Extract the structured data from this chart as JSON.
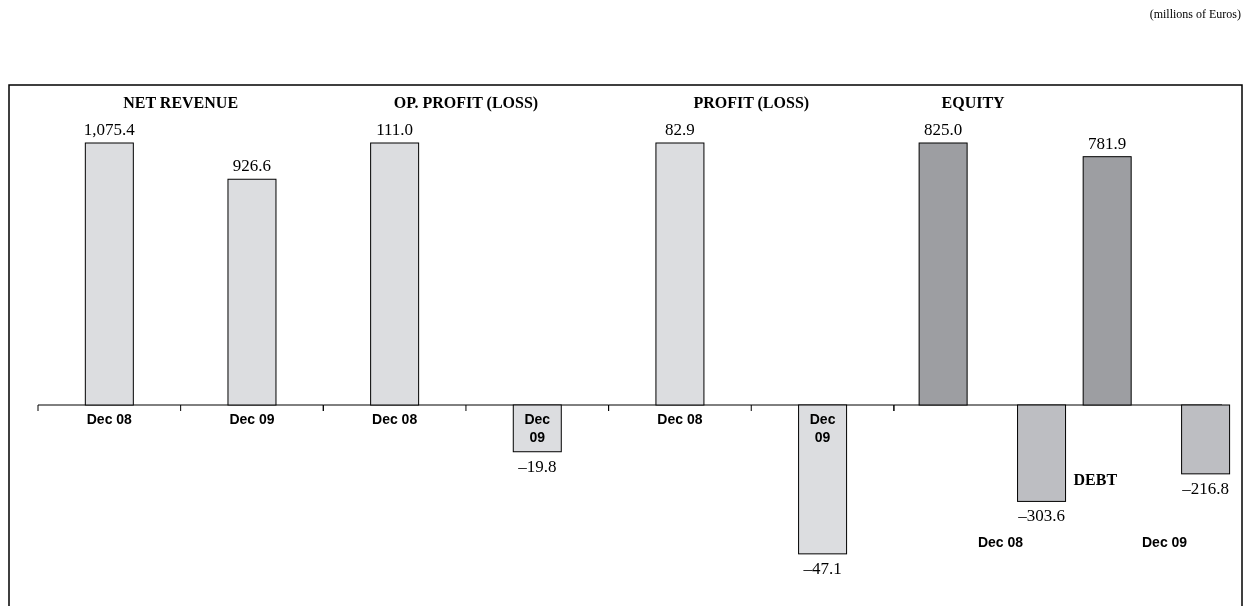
{
  "chart_data": [
    {
      "type": "bar",
      "title": "NET REVENUE",
      "categories": [
        "Dec 08",
        "Dec 09"
      ],
      "values": [
        1075.4,
        926.6
      ],
      "color": "#dcdde0",
      "value_labels": [
        "1,075.4",
        "926.6"
      ],
      "annotations": [
        "(millions of Euros)"
      ]
    },
    {
      "type": "bar",
      "title": "OP. PROFIT (LOSS)",
      "categories": [
        "Dec 08",
        "Dec 09"
      ],
      "values": [
        111.0,
        -19.8
      ],
      "color": "#dcdde0",
      "value_labels": [
        "111.0",
        "–19.8"
      ]
    },
    {
      "type": "bar",
      "title": "PROFIT (LOSS)",
      "categories": [
        "Dec 08",
        "Dec 09"
      ],
      "values": [
        82.9,
        -47.1
      ],
      "color": "#dcdde0",
      "value_labels": [
        "82.9",
        "–47.1"
      ]
    },
    {
      "type": "bar",
      "categories": [
        "Dec 08",
        "Dec 09"
      ],
      "series": [
        {
          "name": "EQUITY",
          "color": "#9d9ea2",
          "values": [
            825.0,
            781.9
          ],
          "value_labels": [
            "825.0",
            "781.9"
          ]
        },
        {
          "name": "DEBT",
          "color": "#bdbec2",
          "values": [
            -303.6,
            -216.8
          ],
          "value_labels": [
            "–303.6",
            "–216.8"
          ]
        }
      ]
    }
  ]
}
